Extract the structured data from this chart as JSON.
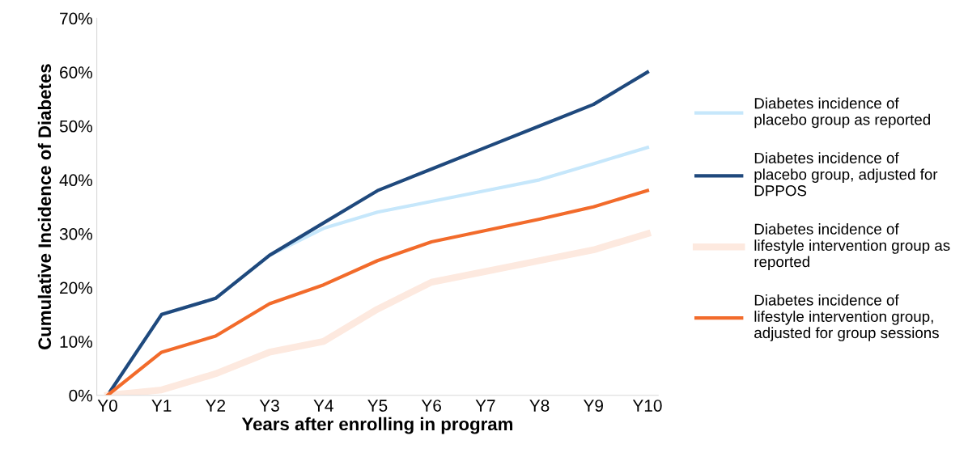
{
  "chart_data": {
    "type": "line",
    "xlabel": "Years after enrolling in program",
    "ylabel": "Cumulative Incidence of Diabetes",
    "categories": [
      "Y0",
      "Y1",
      "Y2",
      "Y3",
      "Y4",
      "Y5",
      "Y6",
      "Y7",
      "Y8",
      "Y9",
      "Y10"
    ],
    "ylim": [
      0,
      70
    ],
    "yticks": [
      {
        "value": 0,
        "label": "0%"
      },
      {
        "value": 10,
        "label": "10%"
      },
      {
        "value": 20,
        "label": "20%"
      },
      {
        "value": 30,
        "label": "30%"
      },
      {
        "value": 40,
        "label": "40%"
      },
      {
        "value": 50,
        "label": "50%"
      },
      {
        "value": 60,
        "label": "60%"
      },
      {
        "value": 70,
        "label": "70%"
      }
    ],
    "grid": false,
    "legend": "right",
    "marker": "none",
    "line_style": "solid",
    "series": [
      {
        "name": "Diabetes incidence of\nplacebo group as reported",
        "color": "#c6e7fb",
        "values": [
          0,
          15,
          18,
          26,
          31,
          34,
          36,
          38,
          40,
          43,
          46
        ]
      },
      {
        "name": "Diabetes incidence of\nplacebo group, adjusted for\nDPPOS",
        "color": "#1f497d",
        "values": [
          0,
          15,
          18,
          26,
          32,
          38,
          42,
          46,
          50,
          54,
          60
        ]
      },
      {
        "name": "Diabetes incidence of\nlifestyle intervention group as\nreported",
        "color": "#fde9df",
        "values": [
          0,
          1,
          4,
          8,
          10,
          16,
          21,
          23,
          25,
          27,
          30
        ]
      },
      {
        "name": "Diabetes incidence of\nlifestyle intervention group,\nadjusted for group sessions",
        "color": "#f26b2b",
        "values": [
          0,
          8,
          11,
          17,
          20.5,
          25,
          28.5,
          30.6,
          32.7,
          35,
          38
        ]
      }
    ]
  }
}
